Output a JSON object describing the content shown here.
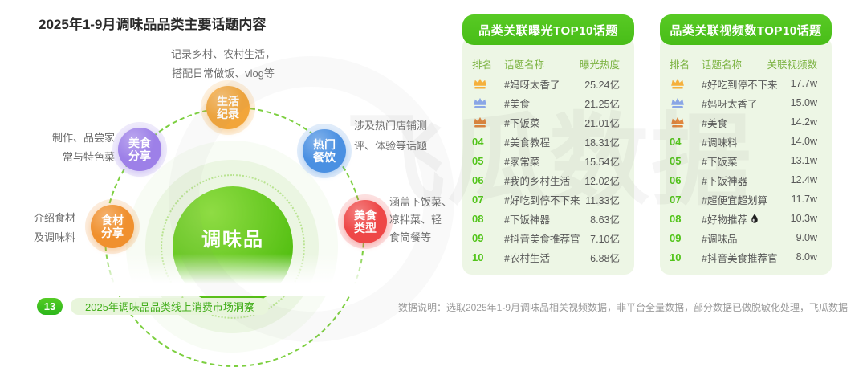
{
  "title": "2025年1-9月调味品品类主要话题内容",
  "watermark": "飞瓜数据",
  "colors": {
    "accent_green": "#52c41a",
    "header_pill_green": "#4fc41d",
    "card_bg": "#edf6e5",
    "column_header_green": "#7cb342",
    "rank_number_green": "#52c41a",
    "body_text": "#595959",
    "note_gray": "#9a9a9a",
    "medal_gold": "#f5b03c",
    "medal_silver_blue": "#8aa6e6",
    "medal_bronze": "#e0873e"
  },
  "diagram": {
    "center_label": "调味品",
    "nodes": [
      {
        "label": "生活\n纪录",
        "color": "#f2a53a",
        "annotation": "记录乡村、农村生活，\n搭配日常做饭、vlog等"
      },
      {
        "label": "美食\n分享",
        "color": "#9d80e8",
        "annotation": "制作、品尝家\n常与特色菜"
      },
      {
        "label": "热门\n餐饮",
        "color": "#4a90e2",
        "annotation": "涉及热门店铺测\n评、体验等话题"
      },
      {
        "label": "食材\n分享",
        "color": "#f0902e",
        "annotation": "介绍食材\n及调味料"
      },
      {
        "label": "美食\n类型",
        "color": "#ee4747",
        "annotation": "涵盖下饭菜、\n凉拌菜、轻\n食简餐等"
      }
    ]
  },
  "tables": [
    {
      "title": "品类关联曝光TOP10话题",
      "columns": [
        "排名",
        "话题名称",
        "曝光热度"
      ],
      "rows": [
        {
          "rank": 1,
          "topic": "#妈呀太香了",
          "value": "25.24亿"
        },
        {
          "rank": 2,
          "topic": "#美食",
          "value": "21.25亿"
        },
        {
          "rank": 3,
          "topic": "#下饭菜",
          "value": "21.01亿"
        },
        {
          "rank": 4,
          "topic": "#美食教程",
          "value": "18.31亿"
        },
        {
          "rank": 5,
          "topic": "#家常菜",
          "value": "15.54亿"
        },
        {
          "rank": 6,
          "topic": "#我的乡村生活",
          "value": "12.02亿"
        },
        {
          "rank": 7,
          "topic": "#好吃到停不下来",
          "value": "11.33亿"
        },
        {
          "rank": 8,
          "topic": "#下饭神器",
          "value": "8.63亿"
        },
        {
          "rank": 9,
          "topic": "#抖音美食推荐官",
          "value": "7.10亿"
        },
        {
          "rank": 10,
          "topic": "#农村生活",
          "value": "6.88亿"
        }
      ]
    },
    {
      "title": "品类关联视频数TOP10话题",
      "columns": [
        "排名",
        "话题名称",
        "关联视频数"
      ],
      "rows": [
        {
          "rank": 1,
          "topic": "#好吃到停不下来",
          "value": "17.7w"
        },
        {
          "rank": 2,
          "topic": "#妈呀太香了",
          "value": "15.0w"
        },
        {
          "rank": 3,
          "topic": "#美食",
          "value": "14.2w"
        },
        {
          "rank": 4,
          "topic": "#调味料",
          "value": "14.0w"
        },
        {
          "rank": 5,
          "topic": "#下饭菜",
          "value": "13.1w"
        },
        {
          "rank": 6,
          "topic": "#下饭神器",
          "value": "12.4w"
        },
        {
          "rank": 7,
          "topic": "#超便宜超划算",
          "value": "11.7w"
        },
        {
          "rank": 8,
          "topic": "#好物推荐",
          "icon": "droplet-icon",
          "value": "10.3w"
        },
        {
          "rank": 9,
          "topic": "#调味品",
          "value": "9.0w"
        },
        {
          "rank": 10,
          "topic": "#抖音美食推荐官",
          "value": "8.0w"
        }
      ]
    }
  ],
  "footer": {
    "page_number": "13",
    "ribbon": "2025年调味品品类线上消费市场洞察",
    "note": "数据说明：选取2025年1-9月调味品相关视频数据，非平台全量数据，部分数据已做脱敏化处理，飞瓜数据"
  }
}
